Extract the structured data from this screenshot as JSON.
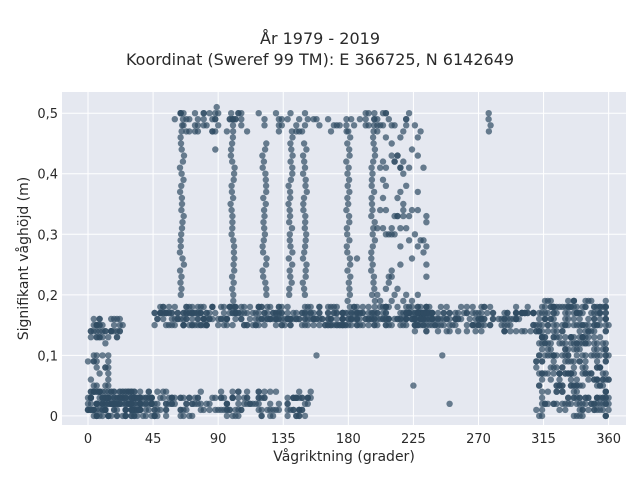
{
  "chart_data": {
    "type": "scatter",
    "title_line1": "År 1979 - 2019",
    "title_line2": "Koordinat (Sweref 99 TM): E 366725, N 6142649",
    "xlabel": "Vågriktning (grader)",
    "ylabel": "Signifikant våghöjd (m)",
    "xlim": [
      -18,
      372
    ],
    "ylim": [
      -0.015,
      0.535
    ],
    "x_ticks": [
      0,
      45,
      90,
      135,
      180,
      225,
      270,
      315,
      360
    ],
    "x_tick_labels": [
      "0",
      "45",
      "90",
      "135",
      "180",
      "225",
      "270",
      "315",
      "360"
    ],
    "y_ticks": [
      0,
      0.1,
      0.2,
      0.3,
      0.4,
      0.5
    ],
    "y_tick_labels": [
      "0",
      "0,1",
      "0,2",
      "0,3",
      "0,4",
      "0,5"
    ],
    "grid": true,
    "marker_color": "#2f4b63",
    "plot_background": "#e5e8f0",
    "clusters": [
      {
        "x": [
          0,
          45
        ],
        "y": [
          0,
          0.04
        ],
        "n": 220
      },
      {
        "x": [
          0,
          15
        ],
        "y": [
          0.04,
          0.16
        ],
        "n": 40
      },
      {
        "x": [
          2,
          25
        ],
        "y": [
          0.13,
          0.16
        ],
        "n": 30
      },
      {
        "x": [
          45,
          155
        ],
        "y": [
          0,
          0.04
        ],
        "n": 160
      },
      {
        "x": [
          45,
          240
        ],
        "y": [
          0.15,
          0.18
        ],
        "n": 420
      },
      {
        "x": [
          225,
          310
        ],
        "y": [
          0.14,
          0.18
        ],
        "n": 160
      },
      {
        "x": [
          310,
          360
        ],
        "y": [
          0,
          0.19
        ],
        "n": 380
      },
      {
        "x": [
          200,
          235
        ],
        "y": [
          0.17,
          0.5
        ],
        "n": 90
      },
      {
        "x": [
          60,
          215
        ],
        "y": [
          0.47,
          0.5
        ],
        "n": 90
      }
    ],
    "vertical_streaks": [
      {
        "x": 65,
        "y": [
          0.2,
          0.5
        ]
      },
      {
        "x": 100,
        "y": [
          0.18,
          0.5
        ]
      },
      {
        "x": 122,
        "y": [
          0.2,
          0.45
        ]
      },
      {
        "x": 140,
        "y": [
          0.2,
          0.47
        ]
      },
      {
        "x": 150,
        "y": [
          0.2,
          0.45
        ]
      },
      {
        "x": 180,
        "y": [
          0.17,
          0.49
        ]
      },
      {
        "x": 197,
        "y": [
          0.17,
          0.5
        ]
      },
      {
        "x": 278,
        "y": [
          0.47,
          0.5
        ]
      }
    ],
    "outliers": [
      {
        "x": 88,
        "y": 0.44
      },
      {
        "x": 89,
        "y": 0.51
      },
      {
        "x": 158,
        "y": 0.1
      },
      {
        "x": 186,
        "y": 0.26
      },
      {
        "x": 225,
        "y": 0.05
      },
      {
        "x": 245,
        "y": 0.1
      },
      {
        "x": 250,
        "y": 0.02
      }
    ]
  }
}
